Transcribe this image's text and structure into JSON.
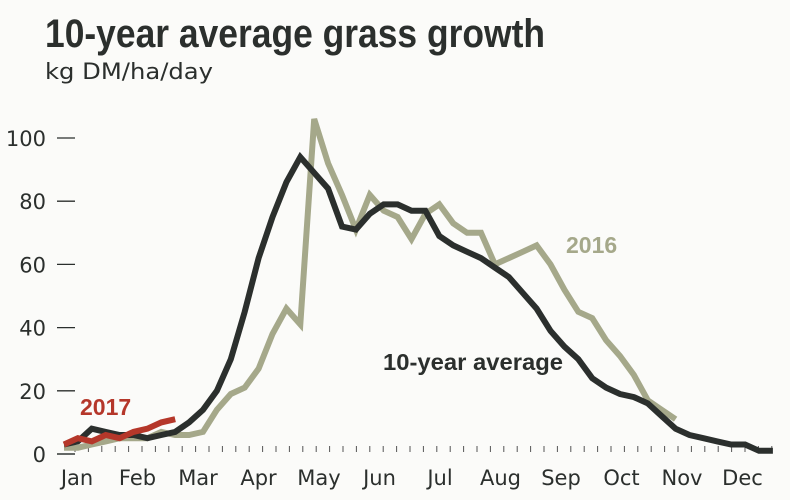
{
  "chart_data": {
    "type": "line",
    "title": "10-year average grass growth",
    "subtitle": "kg DM/ha/day",
    "xlabel": "",
    "ylabel": "",
    "x_unit": "week of year",
    "xlim": [
      1,
      52
    ],
    "ylim": [
      0,
      110
    ],
    "yticks": [
      0,
      20,
      40,
      60,
      80,
      100
    ],
    "month_labels": [
      "Jan",
      "Feb",
      "Mar",
      "Apr",
      "May",
      "Jun",
      "Jul",
      "Aug",
      "Sep",
      "Oct",
      "Nov",
      "Dec"
    ],
    "grid": false,
    "series": [
      {
        "name": "10-year average",
        "color": "#2b2f2d",
        "start_week": 1,
        "values": [
          3,
          4,
          8,
          7,
          6,
          6,
          5,
          6,
          7,
          10,
          14,
          20,
          30,
          45,
          62,
          75,
          86,
          94,
          89,
          84,
          72,
          71,
          76,
          79,
          79,
          77,
          77,
          69,
          66,
          64,
          62,
          59,
          56,
          51,
          46,
          39,
          34,
          30,
          24,
          21,
          19,
          18,
          16,
          12,
          8,
          6,
          5,
          4,
          3,
          3,
          1,
          1
        ]
      },
      {
        "name": "2016",
        "color": "#a5a88a",
        "start_week": 1,
        "values": [
          2,
          2,
          3,
          4,
          5,
          5,
          5,
          7,
          6,
          6,
          7,
          14,
          19,
          21,
          27,
          38,
          46,
          41,
          106,
          92,
          82,
          71,
          82,
          77,
          75,
          68,
          76,
          79,
          73,
          70,
          70,
          60,
          62,
          64,
          66,
          60,
          52,
          45,
          43,
          36,
          31,
          25,
          17,
          14,
          11
        ]
      },
      {
        "name": "2017",
        "color": "#b5372a",
        "start_week": 1,
        "values": [
          3,
          5,
          4,
          6,
          5,
          7,
          8,
          10,
          11
        ]
      }
    ]
  }
}
